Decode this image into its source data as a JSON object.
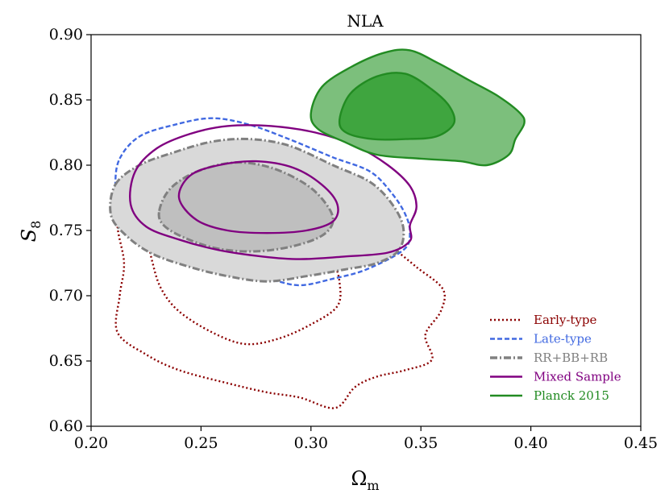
{
  "chart_data": {
    "type": "contour",
    "title": "NLA",
    "xlabel": "Ω",
    "xlabel_sub": "m",
    "ylabel": "S",
    "ylabel_sub": "8",
    "xlim": [
      0.2,
      0.45
    ],
    "ylim": [
      0.6,
      0.9
    ],
    "xticks": [
      "0.20",
      "0.25",
      "0.30",
      "0.35",
      "0.40",
      "0.45"
    ],
    "yticks": [
      "0.60",
      "0.65",
      "0.70",
      "0.75",
      "0.80",
      "0.85",
      "0.90"
    ],
    "legend_position": "lower-right",
    "series": [
      {
        "name": "Early-type",
        "color": "#8b0000",
        "style": "dotted",
        "filled": false,
        "contours": [
          [
            [
              0.215,
              0.779
            ],
            [
              0.232,
              0.79
            ],
            [
              0.252,
              0.796
            ],
            [
              0.265,
              0.799
            ],
            [
              0.29,
              0.783
            ],
            [
              0.31,
              0.762
            ],
            [
              0.327,
              0.753
            ],
            [
              0.335,
              0.74
            ],
            [
              0.348,
              0.722
            ],
            [
              0.36,
              0.705
            ],
            [
              0.359,
              0.688
            ],
            [
              0.352,
              0.67
            ],
            [
              0.355,
              0.651
            ],
            [
              0.343,
              0.643
            ],
            [
              0.33,
              0.638
            ],
            [
              0.32,
              0.63
            ],
            [
              0.311,
              0.614
            ],
            [
              0.295,
              0.622
            ],
            [
              0.28,
              0.626
            ],
            [
              0.262,
              0.633
            ],
            [
              0.24,
              0.643
            ],
            [
              0.225,
              0.655
            ],
            [
              0.212,
              0.672
            ],
            [
              0.213,
              0.7
            ],
            [
              0.215,
              0.725
            ],
            [
              0.212,
              0.755
            ]
          ],
          [
            [
              0.228,
              0.765
            ],
            [
              0.238,
              0.773
            ],
            [
              0.25,
              0.776
            ],
            [
              0.265,
              0.78
            ],
            [
              0.28,
              0.774
            ],
            [
              0.295,
              0.757
            ],
            [
              0.303,
              0.742
            ],
            [
              0.31,
              0.727
            ],
            [
              0.313,
              0.71
            ],
            [
              0.312,
              0.692
            ],
            [
              0.3,
              0.678
            ],
            [
              0.285,
              0.667
            ],
            [
              0.27,
              0.663
            ],
            [
              0.255,
              0.672
            ],
            [
              0.24,
              0.688
            ],
            [
              0.232,
              0.705
            ],
            [
              0.228,
              0.725
            ],
            [
              0.226,
              0.745
            ]
          ]
        ]
      },
      {
        "name": "Late-type",
        "color": "#4169e1",
        "style": "dashed",
        "filled": false,
        "contours": [
          [
            [
              0.213,
              0.805
            ],
            [
              0.222,
              0.822
            ],
            [
              0.238,
              0.831
            ],
            [
              0.255,
              0.836
            ],
            [
              0.272,
              0.831
            ],
            [
              0.29,
              0.82
            ],
            [
              0.31,
              0.806
            ],
            [
              0.327,
              0.795
            ],
            [
              0.337,
              0.778
            ],
            [
              0.343,
              0.762
            ],
            [
              0.345,
              0.748
            ],
            [
              0.342,
              0.735
            ],
            [
              0.325,
              0.72
            ],
            [
              0.31,
              0.713
            ],
            [
              0.295,
              0.708
            ],
            [
              0.282,
              0.712
            ],
            [
              0.265,
              0.715
            ],
            [
              0.248,
              0.722
            ],
            [
              0.23,
              0.732
            ],
            [
              0.218,
              0.745
            ],
            [
              0.212,
              0.76
            ],
            [
              0.211,
              0.785
            ]
          ],
          [
            [
              0.232,
              0.785
            ],
            [
              0.238,
              0.8
            ],
            [
              0.25,
              0.808
            ],
            [
              0.265,
              0.805
            ],
            [
              0.283,
              0.788
            ],
            [
              0.298,
              0.775
            ],
            [
              0.306,
              0.762
            ],
            [
              0.307,
              0.75
            ],
            [
              0.298,
              0.74
            ],
            [
              0.283,
              0.734
            ],
            [
              0.265,
              0.736
            ],
            [
              0.248,
              0.744
            ],
            [
              0.236,
              0.756
            ],
            [
              0.231,
              0.77
            ]
          ]
        ]
      },
      {
        "name": "RR+BB+RB",
        "color": "#808080",
        "fill": "#d9d9d9",
        "fill_inner": "#bfbfbf",
        "style": "dashdot",
        "filled": true,
        "contours": [
          [
            [
              0.211,
              0.785
            ],
            [
              0.222,
              0.8
            ],
            [
              0.238,
              0.81
            ],
            [
              0.255,
              0.818
            ],
            [
              0.272,
              0.82
            ],
            [
              0.29,
              0.815
            ],
            [
              0.31,
              0.8
            ],
            [
              0.327,
              0.787
            ],
            [
              0.337,
              0.77
            ],
            [
              0.342,
              0.752
            ],
            [
              0.34,
              0.735
            ],
            [
              0.33,
              0.725
            ],
            [
              0.315,
              0.72
            ],
            [
              0.298,
              0.715
            ],
            [
              0.28,
              0.711
            ],
            [
              0.262,
              0.715
            ],
            [
              0.245,
              0.722
            ],
            [
              0.228,
              0.732
            ],
            [
              0.216,
              0.746
            ],
            [
              0.209,
              0.762
            ]
          ],
          [
            [
              0.231,
              0.765
            ],
            [
              0.236,
              0.782
            ],
            [
              0.248,
              0.795
            ],
            [
              0.265,
              0.802
            ],
            [
              0.282,
              0.798
            ],
            [
              0.298,
              0.785
            ],
            [
              0.307,
              0.77
            ],
            [
              0.31,
              0.757
            ],
            [
              0.305,
              0.746
            ],
            [
              0.292,
              0.738
            ],
            [
              0.275,
              0.734
            ],
            [
              0.258,
              0.736
            ],
            [
              0.243,
              0.744
            ],
            [
              0.233,
              0.754
            ]
          ]
        ]
      },
      {
        "name": "Mixed Sample",
        "color": "#800080",
        "style": "solid",
        "filled": false,
        "contours": [
          [
            [
              0.22,
              0.795
            ],
            [
              0.23,
              0.813
            ],
            [
              0.245,
              0.824
            ],
            [
              0.262,
              0.83
            ],
            [
              0.282,
              0.83
            ],
            [
              0.302,
              0.825
            ],
            [
              0.32,
              0.815
            ],
            [
              0.335,
              0.8
            ],
            [
              0.345,
              0.784
            ],
            [
              0.348,
              0.768
            ],
            [
              0.345,
              0.754
            ],
            [
              0.345,
              0.742
            ],
            [
              0.335,
              0.733
            ],
            [
              0.315,
              0.73
            ],
            [
              0.295,
              0.728
            ],
            [
              0.278,
              0.73
            ],
            [
              0.258,
              0.735
            ],
            [
              0.24,
              0.743
            ],
            [
              0.225,
              0.753
            ],
            [
              0.218,
              0.77
            ]
          ],
          [
            [
              0.24,
              0.775
            ],
            [
              0.245,
              0.792
            ],
            [
              0.258,
              0.8
            ],
            [
              0.275,
              0.803
            ],
            [
              0.292,
              0.798
            ],
            [
              0.305,
              0.785
            ],
            [
              0.312,
              0.77
            ],
            [
              0.31,
              0.757
            ],
            [
              0.298,
              0.75
            ],
            [
              0.28,
              0.748
            ],
            [
              0.262,
              0.75
            ],
            [
              0.248,
              0.758
            ]
          ]
        ]
      },
      {
        "name": "Planck 2015",
        "color": "#228b22",
        "fill": "#7cbf7c",
        "fill_inner": "#3fa53f",
        "style": "solid",
        "filled": true,
        "contours": [
          [
            [
              0.3,
              0.84
            ],
            [
              0.305,
              0.86
            ],
            [
              0.318,
              0.875
            ],
            [
              0.333,
              0.886
            ],
            [
              0.345,
              0.888
            ],
            [
              0.358,
              0.878
            ],
            [
              0.372,
              0.865
            ],
            [
              0.385,
              0.853
            ],
            [
              0.395,
              0.84
            ],
            [
              0.397,
              0.832
            ],
            [
              0.393,
              0.82
            ],
            [
              0.39,
              0.808
            ],
            [
              0.38,
              0.8
            ],
            [
              0.368,
              0.803
            ],
            [
              0.35,
              0.805
            ],
            [
              0.33,
              0.808
            ],
            [
              0.315,
              0.818
            ],
            [
              0.303,
              0.828
            ]
          ],
          [
            [
              0.313,
              0.835
            ],
            [
              0.318,
              0.855
            ],
            [
              0.33,
              0.868
            ],
            [
              0.343,
              0.87
            ],
            [
              0.355,
              0.858
            ],
            [
              0.363,
              0.845
            ],
            [
              0.365,
              0.832
            ],
            [
              0.357,
              0.822
            ],
            [
              0.343,
              0.82
            ],
            [
              0.328,
              0.82
            ],
            [
              0.316,
              0.825
            ]
          ]
        ]
      }
    ]
  }
}
